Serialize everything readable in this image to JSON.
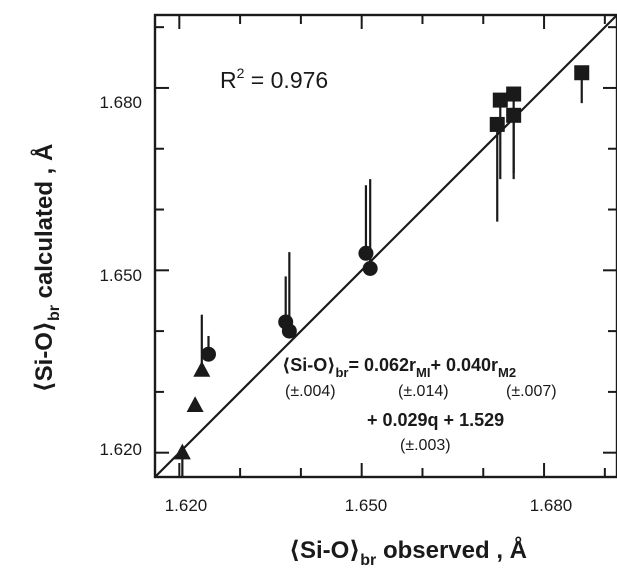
{
  "chart_data": {
    "type": "scatter",
    "xlabel_main": "⟨Si-O⟩",
    "xlabel_sub": "br",
    "xlabel_tail": " observed ,  Å",
    "ylabel_main": "⟨Si-O⟩",
    "ylabel_sub": "br",
    "ylabel_tail": " calculated ,  Å",
    "xlim": [
      1.616,
      1.692
    ],
    "ylim": [
      1.616,
      1.692
    ],
    "xticks": [
      "1.620",
      "1.650",
      "1.680"
    ],
    "yticks": [
      "1.620",
      "1.650",
      "1.680"
    ],
    "r2": {
      "label": "R",
      "sup": "2",
      "text": " = 0.976"
    },
    "equation": {
      "line1_lhs": "⟨Si-O⟩",
      "line1_sub": "br",
      "line1_rest": "= 0.062r",
      "line1_sub2": "MI",
      "line1_rest2": "+ 0.040r",
      "line1_sub3": "M2",
      "line2": [
        "(±.004)",
        "(±.014)",
        "(±.007)"
      ],
      "line3": "+ 0.029q + 1.529",
      "line4": "(±.003)"
    },
    "series": [
      {
        "marker": "triangle",
        "points": [
          {
            "x": 1.6205,
            "y": 1.62,
            "err_low": 1.616
          },
          {
            "x": 1.6226,
            "y": 1.6278
          },
          {
            "x": 1.6237,
            "y": 1.6336,
            "err_high": 1.6427
          }
        ]
      },
      {
        "marker": "circle",
        "points": [
          {
            "x": 1.6248,
            "y": 1.6362,
            "err_high": 1.6392
          },
          {
            "x": 1.6375,
            "y": 1.6415,
            "err_high": 1.649
          },
          {
            "x": 1.6381,
            "y": 1.64,
            "err_high": 1.653
          },
          {
            "x": 1.6507,
            "y": 1.6528,
            "err_high": 1.664
          },
          {
            "x": 1.6514,
            "y": 1.6503,
            "err_high": 1.665
          }
        ]
      },
      {
        "marker": "square",
        "points": [
          {
            "x": 1.6723,
            "y": 1.674,
            "err_low": 1.658
          },
          {
            "x": 1.6728,
            "y": 1.678,
            "err_low": 1.665
          },
          {
            "x": 1.675,
            "y": 1.679,
            "err_low": 1.665
          },
          {
            "x": 1.675,
            "y": 1.6755,
            "err_low": 1.666
          },
          {
            "x": 1.6862,
            "y": 1.6825,
            "err_low": 1.6775
          }
        ]
      }
    ],
    "fit_line": {
      "x": [
        1.616,
        1.692
      ],
      "y": [
        1.616,
        1.692
      ]
    },
    "grid": false,
    "legend": "none"
  }
}
